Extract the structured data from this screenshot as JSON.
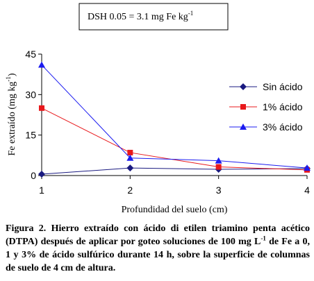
{
  "chart_data": {
    "type": "line",
    "annotation": {
      "main": "DSH 0.05 = 3.1 mg Fe kg",
      "superscript": "-1"
    },
    "ylabel": "Fe extraído (mg kg",
    "ylabel_superscript": "-1",
    "ylabel_tail": ")",
    "xlabel": "Profundidad del suelo (cm)",
    "x": [
      1,
      2,
      3,
      4
    ],
    "xlim": [
      1,
      4
    ],
    "ylim": [
      0,
      45
    ],
    "yticks": [
      0,
      15,
      30,
      45
    ],
    "xticks": [
      1,
      2,
      3,
      4
    ],
    "grid": false,
    "legend_position": "right",
    "series": [
      {
        "name": "Sin ácido",
        "values": [
          0.5,
          2.8,
          2.3,
          2.6
        ],
        "color": "#1a1a80",
        "marker": "diamond"
      },
      {
        "name": "1% ácido",
        "values": [
          25,
          8.5,
          3.2,
          2.1
        ],
        "color": "#e8191c",
        "marker": "square"
      },
      {
        "name": "3% ácido",
        "values": [
          41,
          6.5,
          5.5,
          2.8
        ],
        "color": "#1b1bf0",
        "marker": "triangle"
      }
    ]
  },
  "caption": {
    "label": "Figura 2.",
    "text_1": " Hierro extraído con ácido di etilen triamino penta acético (DTPA) después de aplicar por goteo soluciones de 100 mg L",
    "sup": "-1",
    "text_2": " de Fe a 0, 1 y 3% de ácido sulfúrico durante 14 h, sobre la superficie de columnas de suelo de 4 cm de altura."
  }
}
